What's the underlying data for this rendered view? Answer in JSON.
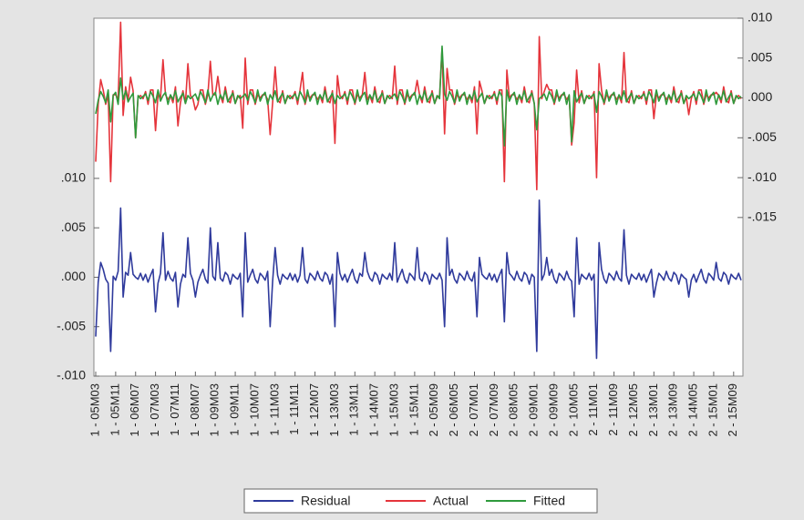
{
  "chart_data": {
    "type": "line",
    "categories": [
      "1 - 05M03",
      null,
      null,
      null,
      null,
      null,
      null,
      null,
      "1 - 05M11",
      null,
      null,
      null,
      null,
      null,
      null,
      null,
      "1 - 06M07",
      null,
      null,
      null,
      null,
      null,
      null,
      null,
      "1 - 07M03",
      null,
      null,
      null,
      null,
      null,
      null,
      null,
      "1 - 07M11",
      null,
      null,
      null,
      null,
      null,
      null,
      null,
      "1 - 08M07",
      null,
      null,
      null,
      null,
      null,
      null,
      null,
      "1 - 09M03",
      null,
      null,
      null,
      null,
      null,
      null,
      null,
      "1 - 09M11",
      null,
      null,
      null,
      null,
      null,
      null,
      null,
      "1 - 10M07",
      null,
      null,
      null,
      null,
      null,
      null,
      null,
      "1 - 11M03",
      null,
      null,
      null,
      null,
      null,
      null,
      null,
      "1 - 11M11",
      null,
      null,
      null,
      null,
      null,
      null,
      null,
      "1 - 12M07",
      null,
      null,
      null,
      null,
      null,
      null,
      null,
      "1 - 13M03",
      null,
      null,
      null,
      null,
      null,
      null,
      null,
      "1 - 13M11",
      null,
      null,
      null,
      null,
      null,
      null,
      null,
      "1 - 14M07",
      null,
      null,
      null,
      null,
      null,
      null,
      null,
      "1 - 15M03",
      null,
      null,
      null,
      null,
      null,
      null,
      null,
      "1 - 15M11",
      null,
      null,
      null,
      null,
      null,
      null,
      null,
      "2 - 05M09",
      null,
      null,
      null,
      null,
      null,
      null,
      null,
      "2 - 06M05",
      null,
      null,
      null,
      null,
      null,
      null,
      null,
      "2 - 07M01",
      null,
      null,
      null,
      null,
      null,
      null,
      null,
      "2 - 07M09",
      null,
      null,
      null,
      null,
      null,
      null,
      null,
      "2 - 08M05",
      null,
      null,
      null,
      null,
      null,
      null,
      null,
      "2 - 09M01",
      null,
      null,
      null,
      null,
      null,
      null,
      null,
      "2 - 09M09",
      null,
      null,
      null,
      null,
      null,
      null,
      null,
      "2 - 10M05",
      null,
      null,
      null,
      null,
      null,
      null,
      null,
      "2 - 11M01",
      null,
      null,
      null,
      null,
      null,
      null,
      null,
      "2 - 11M09",
      null,
      null,
      null,
      null,
      null,
      null,
      null,
      "2 - 12M05",
      null,
      null,
      null,
      null,
      null,
      null,
      null,
      "2 - 13M01",
      null,
      null,
      null,
      null,
      null,
      null,
      null,
      "2 - 13M09",
      null,
      null,
      null,
      null,
      null,
      null,
      null,
      "2 - 14M05",
      null,
      null,
      null,
      null,
      null,
      null,
      null,
      "2 - 15M01",
      null,
      null,
      null,
      null,
      null,
      null,
      null,
      "2 - 15M09",
      null,
      null,
      null
    ],
    "series": [
      {
        "name": "Residual",
        "color": "#2f3a9c",
        "values": [
          -0.006,
          -0.0005,
          0.0015,
          0.0008,
          -0.0002,
          -0.0006,
          -0.0075,
          0.0001,
          -0.0003,
          0.0006,
          0.007,
          -0.002,
          0.0005,
          0.0002,
          0.0025,
          0.0003,
          0,
          -0.0002,
          0.0004,
          -0.0003,
          0.0003,
          -0.0005,
          0.0002,
          0.0008,
          -0.0035,
          -0.0006,
          0.0004,
          0.0045,
          -0.0003,
          0.0006,
          -0.0001,
          -0.0004,
          0.0005,
          -0.003,
          -0.0007,
          0.0003,
          0,
          0.004,
          0.0004,
          -0.0003,
          -0.002,
          -0.0005,
          0.0002,
          0.0008,
          -0.0002,
          -0.0006,
          0.005,
          0.0001,
          -0.0003,
          0.0035,
          -0.0001,
          -0.0004,
          0.0005,
          0.0002,
          -0.0007,
          0.0003,
          0,
          -0.0002,
          0.0004,
          -0.004,
          0.0045,
          -0.0005,
          0.0002,
          0.0008,
          -0.0002,
          -0.0006,
          0.0004,
          0.0001,
          -0.0003,
          0.0006,
          -0.005,
          -0.0004,
          0.003,
          0.0002,
          -0.0007,
          0.0003,
          0,
          -0.0002,
          0.0004,
          -0.0003,
          0.0003,
          -0.0005,
          0.0002,
          0.003,
          -0.0002,
          -0.0006,
          0.0004,
          0.0001,
          -0.0003,
          0.0006,
          -0.0001,
          -0.0004,
          0.0005,
          0.0002,
          -0.0007,
          0.0003,
          -0.005,
          0.0025,
          0.0004,
          -0.0003,
          0.0003,
          -0.0005,
          0.0002,
          0.0008,
          -0.0002,
          -0.0006,
          0.0004,
          0.0001,
          0.0025,
          0.0006,
          -0.0001,
          -0.0004,
          0.0005,
          0.0002,
          -0.0007,
          0.0003,
          0,
          -0.0002,
          0.0004,
          -0.0003,
          0.0035,
          -0.0005,
          0.0002,
          0.0008,
          -0.0002,
          -0.0006,
          0.0004,
          0.0001,
          -0.0003,
          0.003,
          -0.0001,
          -0.0004,
          0.0005,
          0.0002,
          -0.0007,
          0.0003,
          0,
          -0.0002,
          0.0004,
          -0.0003,
          -0.005,
          0.004,
          0.0002,
          0.0008,
          -0.0002,
          -0.0006,
          0.0004,
          0.0001,
          -0.0003,
          0.0006,
          -0.0001,
          -0.0004,
          0.0005,
          -0.004,
          0.002,
          0.0003,
          0,
          -0.0002,
          0.0004,
          -0.0003,
          0.0003,
          -0.0005,
          0.0002,
          0.0008,
          -0.0045,
          0.0025,
          0.0004,
          0.0001,
          -0.0003,
          0.0006,
          -0.0001,
          -0.0004,
          0.0005,
          0.0002,
          -0.0007,
          0.0003,
          0,
          -0.0075,
          0.0078,
          -0.0003,
          0.0003,
          0.002,
          0.0002,
          0.0008,
          -0.0002,
          -0.0006,
          0.0004,
          0.0001,
          -0.0003,
          0.0006,
          -0.0001,
          -0.0004,
          -0.004,
          0.004,
          -0.0007,
          0.0003,
          0,
          -0.0002,
          0.0004,
          -0.0003,
          0.0003,
          -0.0082,
          0.0035,
          0.0008,
          -0.0002,
          -0.0006,
          0.0004,
          0.0001,
          -0.0003,
          0.0006,
          -0.0001,
          -0.0004,
          0.0048,
          0.0002,
          -0.0007,
          0.0003,
          0,
          -0.0002,
          0.0004,
          -0.0003,
          0.0003,
          -0.0005,
          0.0002,
          0.0008,
          -0.002,
          -0.0006,
          0.0004,
          0.0001,
          -0.0003,
          0.0006,
          -0.0001,
          -0.0004,
          0.0005,
          0.0002,
          -0.0007,
          0.0003,
          0,
          -0.0002,
          -0.002,
          -0.0003,
          0.0003,
          -0.0005,
          0.0002,
          0.0008,
          -0.0002,
          -0.0006,
          0.0004,
          0.0001,
          -0.0003,
          0.0015,
          -0.0001,
          -0.0004,
          0.0005,
          0.0002,
          -0.0007,
          0.0003,
          0,
          -0.0002,
          0.0004,
          -0.0003
        ]
      },
      {
        "name": "Actual",
        "color": "#e5343b",
        "axis": "y2",
        "values": [
          -0.008,
          -0.0008,
          0.0023,
          0.001,
          -0.0008,
          0.0004,
          -0.0105,
          0.0004,
          0.0004,
          -0.0002,
          0.0095,
          -0.0022,
          0.0014,
          -0.0003,
          0.0026,
          0.0009,
          -0.005,
          0.0001,
          0.0003,
          -0.0001,
          0.0008,
          -0.0008,
          0.001,
          0.001,
          -0.0041,
          0.0004,
          0,
          0.0048,
          0.0004,
          -0.0002,
          0.0003,
          -0.0006,
          0.0014,
          -0.0035,
          -0.0006,
          0.0009,
          -0.0007,
          0.0043,
          0.0003,
          -0.0001,
          -0.0015,
          -0.0008,
          0.001,
          0.001,
          -0.0008,
          0.0004,
          0.0046,
          0.0004,
          0.0004,
          0.0027,
          0.0003,
          -0.0006,
          0.0014,
          -0.0003,
          -0.0006,
          0.0009,
          -0.0007,
          0.0001,
          0.0003,
          -0.0038,
          0.005,
          -0.0008,
          0.001,
          0.001,
          -0.0008,
          0.0004,
          0,
          0.0004,
          0.0004,
          -0.0002,
          -0.0046,
          -0.0006,
          0.0039,
          -0.0003,
          -0.0006,
          0.0009,
          -0.0007,
          0.0001,
          0.0003,
          -0.0001,
          0.0008,
          -0.0008,
          0.001,
          0.0032,
          -0.0008,
          0.0004,
          0,
          0.0004,
          0.0004,
          -0.0002,
          0.0003,
          -0.0006,
          0.0014,
          -0.0003,
          -0.0006,
          0.0009,
          -0.0057,
          0.0028,
          0.0003,
          -0.0001,
          0.0008,
          -0.0008,
          0.001,
          0.001,
          -0.0008,
          0.0004,
          0,
          0.0004,
          0.0032,
          -0.0002,
          0.0003,
          -0.0006,
          0.0014,
          -0.0003,
          -0.0006,
          0.0009,
          -0.0007,
          0.0001,
          0.0003,
          -0.0001,
          0.004,
          -0.0008,
          0.001,
          0.001,
          -0.0008,
          0.0004,
          0,
          0.0004,
          0.0004,
          0.0022,
          0.0003,
          -0.0006,
          0.0014,
          -0.0003,
          -0.0006,
          0.0009,
          -0.0007,
          0.0001,
          0.0003,
          0.0062,
          -0.0045,
          0.0037,
          0.001,
          0.001,
          -0.0008,
          0.0004,
          0,
          0.0004,
          0.0004,
          -0.0002,
          0.0003,
          -0.0006,
          0.0014,
          -0.0045,
          0.0021,
          0.0009,
          -0.0007,
          0.0001,
          0.0003,
          -0.0001,
          0.0008,
          -0.0008,
          0.001,
          0.001,
          -0.0105,
          0.0035,
          0,
          0.0004,
          0.0004,
          -0.0002,
          0.0003,
          -0.0006,
          0.0014,
          -0.0003,
          -0.0006,
          0.0009,
          -0.0007,
          -0.0115,
          0.0077,
          -0.0001,
          0.0008,
          0.0017,
          0.001,
          0.001,
          -0.0008,
          0.0004,
          0,
          0.0004,
          0.0004,
          -0.0002,
          0.0003,
          -0.0059,
          -0.0031,
          0.0035,
          -0.0006,
          0.0009,
          -0.0007,
          0.0001,
          0.0003,
          -0.0001,
          0.0008,
          -0.01,
          0.0043,
          0.001,
          -0.0008,
          0.0004,
          0,
          0.0004,
          0.0004,
          -0.0002,
          0.0003,
          -0.0006,
          0.0057,
          -0.0003,
          -0.0006,
          0.0009,
          -0.0007,
          0.0001,
          0.0003,
          -0.0001,
          0.0008,
          -0.0008,
          0.001,
          0.001,
          -0.0026,
          0.0004,
          0,
          0.0004,
          0.0004,
          -0.0002,
          0.0003,
          -0.0006,
          0.0014,
          -0.0003,
          -0.0006,
          0.0009,
          -0.0007,
          0.0001,
          -0.0021,
          -0.0001,
          0.0008,
          -0.0008,
          0.001,
          0.001,
          -0.0008,
          0.0004,
          0,
          0.0004,
          0.0004,
          0.0007,
          0.0003,
          -0.0006,
          0.0014,
          -0.0003,
          -0.0006,
          0.0009,
          -0.0007,
          0.0001,
          0.0003,
          -0.0001
        ]
      },
      {
        "name": "Fitted",
        "color": "#2f9a3c",
        "axis": "y2",
        "values": [
          -0.002,
          -0.0003,
          0.0008,
          0.0002,
          -0.0006,
          0.001,
          -0.003,
          0.0003,
          0.0007,
          -0.0008,
          0.0025,
          -0.0002,
          0.0009,
          -0.0005,
          0.0001,
          0.0006,
          -0.005,
          0.0003,
          -0.0001,
          0.0002,
          0.0005,
          -0.0003,
          0.0008,
          0.0002,
          -0.0006,
          0.001,
          -0.0004,
          0.0003,
          0.0007,
          -0.0008,
          0.0004,
          -0.0002,
          0.0009,
          -0.0005,
          0.0001,
          0.0006,
          -0.0007,
          0.0003,
          -0.0001,
          0.0002,
          0.0005,
          -0.0003,
          0.0008,
          0.0002,
          -0.0006,
          0.001,
          -0.0004,
          0.0003,
          0.0007,
          -0.0008,
          0.0004,
          -0.0002,
          0.0009,
          -0.0005,
          0.0001,
          0.0006,
          -0.0007,
          0.0003,
          -0.0001,
          0.0002,
          0.0005,
          -0.0003,
          0.0008,
          0.0002,
          -0.0006,
          0.001,
          -0.0004,
          0.0003,
          0.0007,
          -0.0008,
          0.0004,
          -0.0002,
          0.0009,
          -0.0005,
          0.0001,
          0.0006,
          -0.0007,
          0.0003,
          -0.0001,
          0.0002,
          0.0005,
          -0.0003,
          0.0008,
          0.0002,
          -0.0006,
          0.001,
          -0.0004,
          0.0003,
          0.0007,
          -0.0008,
          0.0004,
          -0.0002,
          0.0009,
          -0.0005,
          0.0001,
          0.0006,
          -0.0007,
          0.0003,
          -0.0001,
          0.0002,
          0.0005,
          -0.0003,
          0.0008,
          0.0002,
          -0.0006,
          0.001,
          -0.0004,
          0.0003,
          0.0007,
          -0.0008,
          0.0004,
          -0.0002,
          0.0009,
          -0.0005,
          0.0001,
          0.0006,
          -0.0007,
          0.0003,
          -0.0001,
          0.0002,
          0.0005,
          -0.0003,
          0.0008,
          0.0002,
          -0.0006,
          0.001,
          -0.0004,
          0.0003,
          0.0007,
          -0.0008,
          0.0004,
          -0.0002,
          0.0009,
          -0.0005,
          0.0001,
          0.0006,
          -0.0007,
          0.0003,
          -0.0001,
          0.0065,
          0.0005,
          -0.0003,
          0.0008,
          0.0002,
          -0.0006,
          0.001,
          -0.0004,
          0.0003,
          0.0007,
          -0.0008,
          0.0004,
          -0.0002,
          0.0009,
          -0.0005,
          0.0001,
          0.0006,
          -0.0007,
          0.0003,
          -0.0001,
          0.0002,
          0.0005,
          -0.0003,
          0.0008,
          0.0002,
          -0.006,
          0.001,
          -0.0004,
          0.0003,
          0.0007,
          -0.0008,
          0.0004,
          -0.0002,
          0.0009,
          -0.0005,
          0.0001,
          0.0006,
          -0.0007,
          -0.004,
          -0.0001,
          0.0002,
          0.0005,
          -0.0003,
          0.0008,
          0.0002,
          -0.0006,
          0.001,
          -0.0004,
          0.0003,
          0.0007,
          -0.0008,
          0.0004,
          -0.0055,
          0.0009,
          -0.0005,
          0.0001,
          0.0006,
          -0.0007,
          0.0003,
          -0.0001,
          0.0002,
          0.0005,
          -0.0018,
          0.0008,
          0.0002,
          -0.0006,
          0.001,
          -0.0004,
          0.0003,
          0.0007,
          -0.0008,
          0.0004,
          -0.0002,
          0.0009,
          -0.0005,
          0.0001,
          0.0006,
          -0.0007,
          0.0003,
          -0.0001,
          0.0002,
          0.0005,
          -0.0003,
          0.0008,
          0.0002,
          -0.0006,
          0.001,
          -0.0004,
          0.0003,
          0.0007,
          -0.0008,
          0.0004,
          -0.0002,
          0.0009,
          -0.0005,
          0.0001,
          0.0006,
          -0.0007,
          0.0003,
          -0.0001,
          0.0002,
          0.0005,
          -0.0003,
          0.0008,
          0.0002,
          -0.0006,
          0.001,
          -0.0004,
          0.0003,
          0.0007,
          -0.0008,
          0.0004,
          -0.0002,
          0.0009,
          -0.0005,
          0.0001,
          0.0006,
          -0.0007,
          0.0003,
          -0.0001,
          0.0002
        ]
      }
    ],
    "ylim": [
      -0.01,
      0.0262
    ],
    "yticks": [
      {
        "value": 0.01,
        "label": ".010"
      },
      {
        "value": 0.005,
        "label": ".005"
      },
      {
        "value": 0,
        "label": ".000"
      },
      {
        "value": -0.005,
        "label": "-.005"
      },
      {
        "value": -0.01,
        "label": "-.010"
      }
    ],
    "y2lim": [
      -0.0349,
      0.01
    ],
    "y2ticks": [
      {
        "value": 0.01,
        "label": ".010"
      },
      {
        "value": 0.005,
        "label": ".005"
      },
      {
        "value": 0,
        "label": ".000"
      },
      {
        "value": -0.005,
        "label": "-.005"
      },
      {
        "value": -0.01,
        "label": "-.010"
      },
      {
        "value": -0.015,
        "label": "-.015"
      }
    ],
    "legend": "bottom"
  }
}
